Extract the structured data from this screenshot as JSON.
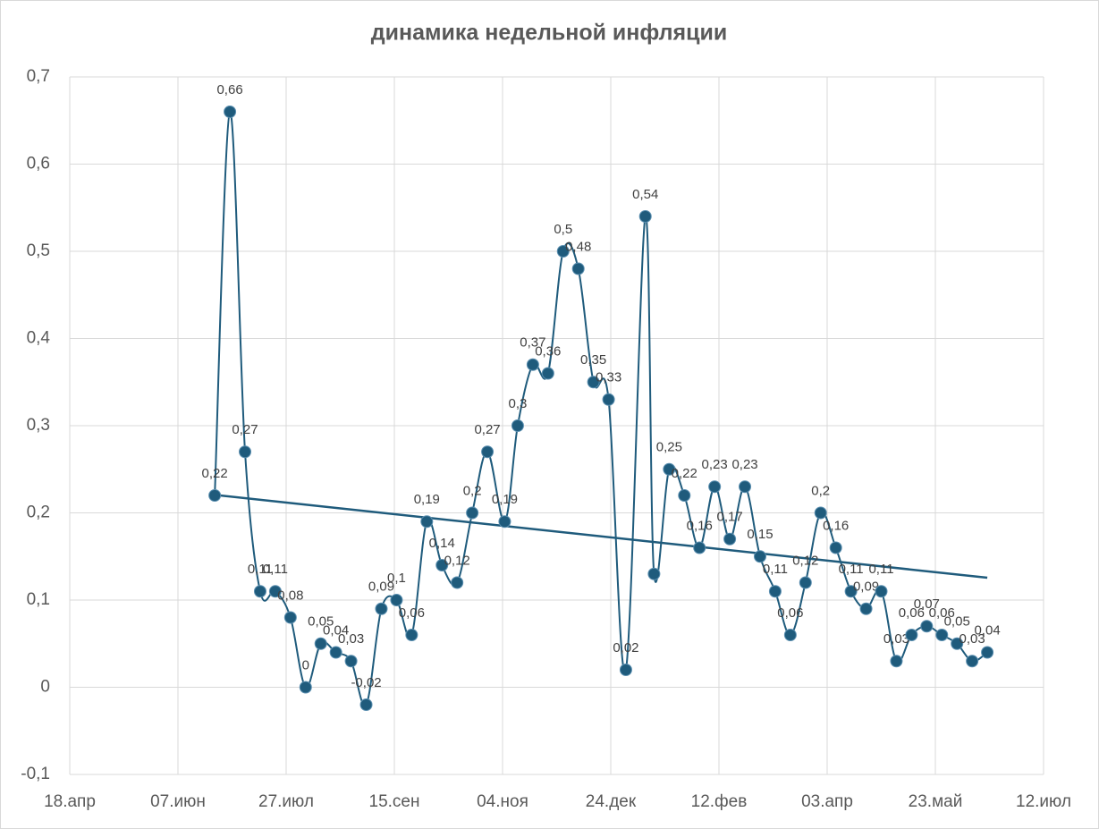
{
  "chart_data": {
    "type": "line",
    "title": "динамика недельной инфляции",
    "x": [
      67,
      74,
      81,
      88,
      95,
      102,
      109,
      116,
      123,
      130,
      137,
      144,
      151,
      158,
      165,
      172,
      179,
      186,
      193,
      201,
      207,
      214,
      221,
      228,
      235,
      242,
      249,
      257,
      266,
      270,
      277,
      284,
      291,
      298,
      305,
      312,
      319,
      326,
      333,
      340,
      347,
      354,
      361,
      368,
      375,
      382,
      389,
      396,
      403,
      410,
      417,
      424
    ],
    "series": [
      {
        "color": "#1f5b7c",
        "values": [
          0.22,
          0.66,
          0.27,
          0.11,
          0.11,
          0.08,
          0,
          0.05,
          0.04,
          0.03,
          -0.02,
          0.09,
          0.1,
          0.06,
          0.19,
          0.14,
          0.12,
          0.2,
          0.27,
          0.19,
          0.3,
          0.37,
          0.36,
          0.5,
          0.48,
          0.35,
          0.33,
          0.02,
          0.54,
          0.13,
          0.25,
          0.22,
          0.16,
          0.23,
          0.17,
          0.23,
          0.15,
          0.11,
          0.06,
          0.12,
          0.2,
          0.16,
          0.11,
          0.09,
          0.11,
          0.03,
          0.06,
          0.07,
          0.06,
          0.05,
          0.03,
          0.04
        ],
        "value_labels": [
          "0,22",
          "0,66",
          "0,27",
          "0,11",
          "0,11",
          "0,08",
          "0",
          "0,05",
          "0,04",
          "0,03",
          "-0,02",
          "0,09",
          "0,1",
          "0,06",
          "0,19",
          "0,14",
          "0,12",
          "0,2",
          "0,27",
          "0,19",
          "0,3",
          "0,37",
          "0,36",
          "0,5",
          "0,48",
          "0,35",
          "0,33",
          "0,02",
          "0,54",
          null,
          "0,25",
          "0,22",
          "0,16",
          "0,23",
          "0,17",
          "0,23",
          "0,15",
          "0,11",
          "0,06",
          "0,12",
          "0,2",
          "0,16",
          "0,11",
          "0,09",
          "0,11",
          "0,03",
          "0,06",
          "0,07",
          "0,06",
          "0,05",
          "0,03",
          "0,04"
        ]
      }
    ],
    "trendline": "linear",
    "xlim": [
      0,
      450
    ],
    "xticks": [
      {
        "value": 0,
        "label": "18.апр"
      },
      {
        "value": 50,
        "label": "07.июн"
      },
      {
        "value": 100,
        "label": "27.июл"
      },
      {
        "value": 150,
        "label": "15.сен"
      },
      {
        "value": 200,
        "label": "04.ноя"
      },
      {
        "value": 250,
        "label": "24.дек"
      },
      {
        "value": 300,
        "label": "12.фев"
      },
      {
        "value": 350,
        "label": "03.апр"
      },
      {
        "value": 400,
        "label": "23.май"
      },
      {
        "value": 450,
        "label": "12.июл"
      }
    ],
    "ylim": [
      -0.1,
      0.7
    ],
    "yticks": [
      {
        "value": -0.1,
        "label": "-0,1"
      },
      0,
      {
        "value": 0.1,
        "label": "0,1"
      },
      {
        "value": 0.2,
        "label": "0,2"
      },
      {
        "value": 0.3,
        "label": "0,3"
      },
      {
        "value": 0.4,
        "label": "0,4"
      },
      {
        "value": 0.5,
        "label": "0,5"
      },
      {
        "value": 0.6,
        "label": "0,6"
      },
      {
        "value": 0.7,
        "label": "0,7"
      }
    ],
    "grid": true
  }
}
